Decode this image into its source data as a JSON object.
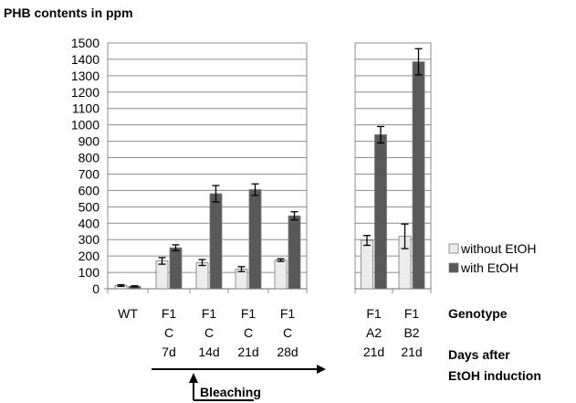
{
  "chart_data": {
    "type": "bar",
    "title": "PHB contents in ppm",
    "ylim": [
      0,
      1500
    ],
    "ytick_step": 100,
    "grid": true,
    "legend_position": "right",
    "series": [
      {
        "name": "without EtOH",
        "color": "#ececec",
        "values": [
          20,
          170,
          160,
          120,
          175,
          295,
          320
        ],
        "errors": [
          5,
          20,
          18,
          15,
          8,
          30,
          75
        ]
      },
      {
        "name": "with EtOH",
        "color": "#595959",
        "values": [
          15,
          250,
          580,
          605,
          445,
          940,
          1385
        ],
        "errors": [
          3,
          18,
          50,
          35,
          25,
          50,
          80
        ]
      }
    ],
    "groups": [
      {
        "genotype": "WT",
        "cultivar": "",
        "days": ""
      },
      {
        "genotype": "F1",
        "cultivar": "C",
        "days": "7d"
      },
      {
        "genotype": "F1",
        "cultivar": "C",
        "days": "14d"
      },
      {
        "genotype": "F1",
        "cultivar": "C",
        "days": "21d"
      },
      {
        "genotype": "F1",
        "cultivar": "C",
        "days": "28d"
      },
      {
        "genotype": "F1",
        "cultivar": "A2",
        "days": "21d"
      },
      {
        "genotype": "F1",
        "cultivar": "B2",
        "days": "21d"
      }
    ],
    "row_labels": {
      "genotype": "Genotype",
      "days_line1": "Days after",
      "days_line2": "EtOH induction"
    },
    "annotation": "Bleaching"
  }
}
